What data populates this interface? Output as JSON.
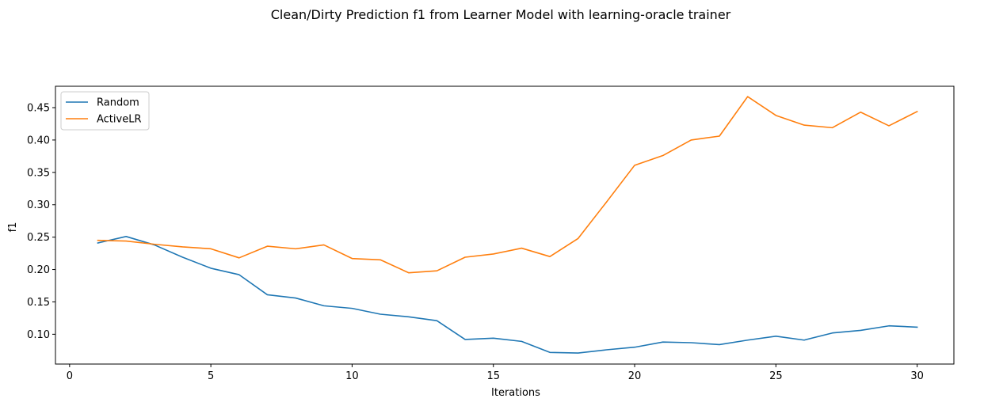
{
  "chart_data": {
    "type": "line",
    "title": "Clean/Dirty Prediction f1 from Learner Model with learning-oracle trainer",
    "xlabel": "Iterations",
    "ylabel": "f1",
    "xlim": [
      -0.5,
      31.3
    ],
    "ylim": [
      0.054,
      0.483
    ],
    "xticks": [
      0,
      5,
      10,
      15,
      20,
      25,
      30
    ],
    "yticks": [
      0.1,
      0.15,
      0.2,
      0.25,
      0.3,
      0.35,
      0.4,
      0.45
    ],
    "ytick_labels": [
      "0.10",
      "0.15",
      "0.20",
      "0.25",
      "0.30",
      "0.35",
      "0.40",
      "0.45"
    ],
    "legend": {
      "position": "upper-left"
    },
    "grid": false,
    "x": [
      1,
      2,
      3,
      4,
      5,
      6,
      7,
      8,
      9,
      10,
      11,
      12,
      13,
      14,
      15,
      16,
      17,
      18,
      19,
      20,
      21,
      22,
      23,
      24,
      25,
      26,
      27,
      28,
      29,
      30
    ],
    "series": [
      {
        "name": "Random",
        "color": "#1f77b4",
        "values": [
          0.241,
          0.251,
          0.238,
          0.219,
          0.202,
          0.192,
          0.161,
          0.156,
          0.144,
          0.14,
          0.131,
          0.127,
          0.121,
          0.092,
          0.094,
          0.089,
          0.072,
          0.071,
          0.076,
          0.08,
          0.088,
          0.087,
          0.084,
          0.091,
          0.097,
          0.091,
          0.102,
          0.106,
          0.113,
          0.111
        ]
      },
      {
        "name": "ActiveLR",
        "color": "#ff7f0e",
        "values": [
          0.245,
          0.244,
          0.239,
          0.235,
          0.232,
          0.218,
          0.236,
          0.232,
          0.238,
          0.217,
          0.215,
          0.195,
          0.198,
          0.219,
          0.224,
          0.233,
          0.22,
          0.248,
          0.304,
          0.361,
          0.376,
          0.4,
          0.406,
          0.467,
          0.438,
          0.423,
          0.419,
          0.443,
          0.422,
          0.444
        ]
      }
    ]
  }
}
